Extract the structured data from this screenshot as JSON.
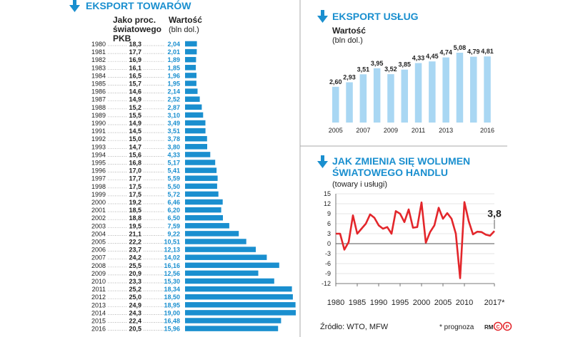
{
  "goods": {
    "title": "EKSPORT TOWARÓW",
    "col_share_header": "Jako proc. światowego PKB",
    "col_value_header": "Wartość",
    "col_value_unit": "(bln dol.)",
    "accent": "#1a8fcf"
  },
  "services": {
    "title": "EKSPORT USŁUG",
    "ylabel": "Wartość",
    "yunit": "(bln dol.)"
  },
  "trade": {
    "title_line1": "JAK ZMIENIA SIĘ WOLUMEN",
    "title_line2": "ŚWIATOWEGO HANDLU",
    "subtitle": "(towary i usługi)",
    "last_value_label": "3,8",
    "forecast_mark": "*",
    "line_color": "#e3262b"
  },
  "footer": {
    "source": "Źródło: WTO, MFW",
    "note": "* prognoza",
    "credit": "RM"
  },
  "chart_data": [
    {
      "type": "bar",
      "title": "EKSPORT TOWARÓW",
      "orientation": "horizontal",
      "categories": [
        "1980",
        "1981",
        "1982",
        "1983",
        "1984",
        "1985",
        "1986",
        "1987",
        "1988",
        "1989",
        "1990",
        "1991",
        "1992",
        "1993",
        "1994",
        "1995",
        "1996",
        "1997",
        "1998",
        "1999",
        "2000",
        "2001",
        "2002",
        "2003",
        "2004",
        "2005",
        "2006",
        "2007",
        "2008",
        "2009",
        "2010",
        "2011",
        "2012",
        "2013",
        "2014",
        "2015",
        "2016"
      ],
      "share_labels": [
        "18,3",
        "17,7",
        "16,9",
        "16,1",
        "16,5",
        "15,7",
        "14,6",
        "14,9",
        "15,2",
        "15,5",
        "14,9",
        "14,5",
        "15,0",
        "14,7",
        "15,6",
        "16,8",
        "17,0",
        "17,7",
        "17,5",
        "17,5",
        "19,2",
        "18,5",
        "18,8",
        "19,5",
        "21,1",
        "22,2",
        "23,7",
        "24,2",
        "25,5",
        "20,9",
        "23,3",
        "25,2",
        "25,0",
        "24,9",
        "24,3",
        "22,4",
        "20,5"
      ],
      "value_labels": [
        "2,04",
        "2,01",
        "1,89",
        "1,85",
        "1,96",
        "1,95",
        "2,14",
        "2,52",
        "2,87",
        "3,10",
        "3,49",
        "3,51",
        "3,78",
        "3,80",
        "4,33",
        "5,17",
        "5,41",
        "5,59",
        "5,50",
        "5,72",
        "6,46",
        "6,20",
        "6,50",
        "7,59",
        "9,22",
        "10,51",
        "12,13",
        "14,02",
        "16,16",
        "12,56",
        "15,30",
        "18,34",
        "18,50",
        "18,95",
        "19,00",
        "16,48",
        "15,96"
      ],
      "values": [
        2.04,
        2.01,
        1.89,
        1.85,
        1.96,
        1.95,
        2.14,
        2.52,
        2.87,
        3.1,
        3.49,
        3.51,
        3.78,
        3.8,
        4.33,
        5.17,
        5.41,
        5.59,
        5.5,
        5.72,
        6.46,
        6.2,
        6.5,
        7.59,
        9.22,
        10.51,
        12.13,
        14.02,
        16.16,
        12.56,
        15.3,
        18.34,
        18.5,
        18.95,
        19.0,
        16.48,
        15.96
      ],
      "xlim": [
        0,
        19.0
      ]
    },
    {
      "type": "bar",
      "title": "EKSPORT USŁUG",
      "ylabel": "Wartość",
      "categories": [
        "2005",
        "2006",
        "2007",
        "2008",
        "2009",
        "2010",
        "2011",
        "2012",
        "2013",
        "2014",
        "2015",
        "2016"
      ],
      "tick_labels": [
        "2005",
        "2007",
        "2009",
        "2011",
        "2013",
        "2016"
      ],
      "tick_years": [
        2005,
        2007,
        2009,
        2011,
        2013,
        2016
      ],
      "value_labels": [
        "2,60",
        "2,93",
        "3,51",
        "3,95",
        "3,52",
        "3,85",
        "4,33",
        "4,45",
        "4,74",
        "5,08",
        "4,79",
        "4,81"
      ],
      "values": [
        2.6,
        2.93,
        3.51,
        3.95,
        3.52,
        3.85,
        4.33,
        4.45,
        4.74,
        5.08,
        4.79,
        4.81
      ],
      "ylim": [
        0,
        5.08
      ],
      "grid": false
    },
    {
      "type": "line",
      "title": "JAK ZMIENIA SIĘ WOLUMEN ŚWIATOWEGO HANDLU",
      "subtitle": "(towary i usługi)",
      "x": [
        1980,
        1981,
        1982,
        1983,
        1984,
        1985,
        1986,
        1987,
        1988,
        1989,
        1990,
        1991,
        1992,
        1993,
        1994,
        1995,
        1996,
        1997,
        1998,
        1999,
        2000,
        2001,
        2002,
        2003,
        2004,
        2005,
        2006,
        2007,
        2008,
        2009,
        2010,
        2011,
        2012,
        2013,
        2014,
        2015,
        2016,
        2017
      ],
      "y": [
        3.0,
        3.0,
        -1.8,
        0.5,
        8.5,
        3.0,
        4.5,
        6.0,
        8.8,
        7.8,
        5.5,
        4.5,
        5.0,
        3.0,
        9.8,
        9.0,
        6.5,
        10.3,
        4.8,
        5.0,
        12.4,
        0.3,
        3.5,
        5.5,
        10.8,
        7.5,
        9.2,
        7.5,
        3.0,
        -10.4,
        12.5,
        6.8,
        2.8,
        3.6,
        3.5,
        2.7,
        2.4,
        3.8
      ],
      "ylim": [
        -12,
        15
      ],
      "yticks": [
        "15",
        "12",
        "9",
        "6",
        "3",
        "0",
        "-3",
        "-6",
        "-9",
        "-12"
      ],
      "ytick_values": [
        15,
        12,
        9,
        6,
        3,
        0,
        -3,
        -6,
        -9,
        -12
      ],
      "xtick_labels": [
        "1980",
        "1985",
        "1990",
        "1995",
        "2000",
        "2005",
        "2010",
        "2017*"
      ],
      "xtick_values": [
        1980,
        1985,
        1990,
        1995,
        2000,
        2005,
        2010,
        2017
      ],
      "grid": true,
      "annotation": "3,8"
    }
  ]
}
